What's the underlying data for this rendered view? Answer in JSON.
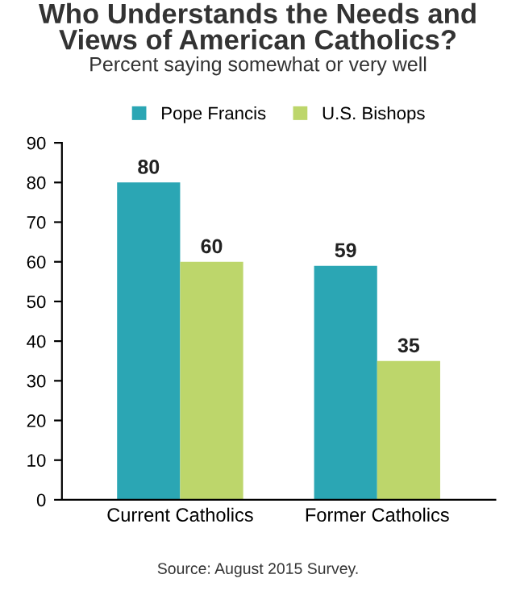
{
  "chart_data": {
    "type": "bar",
    "title": "Who Understands the Needs and\nViews of American Catholics?",
    "subtitle": "Percent saying somewhat or very well",
    "categories": [
      "Current Catholics",
      "Former Catholics"
    ],
    "series": [
      {
        "name": "Pope Francis",
        "color": "#2ba6b4",
        "values": [
          80,
          59
        ]
      },
      {
        "name": "U.S. Bishops",
        "color": "#bdd66b",
        "values": [
          60,
          35
        ]
      }
    ],
    "ylim": [
      0,
      90
    ],
    "yticks": [
      0,
      10,
      20,
      30,
      40,
      50,
      60,
      70,
      80,
      90
    ],
    "grid": false,
    "legend": "top",
    "data_labels": true,
    "annotations": [
      "Source: August 2015 Survey."
    ]
  }
}
